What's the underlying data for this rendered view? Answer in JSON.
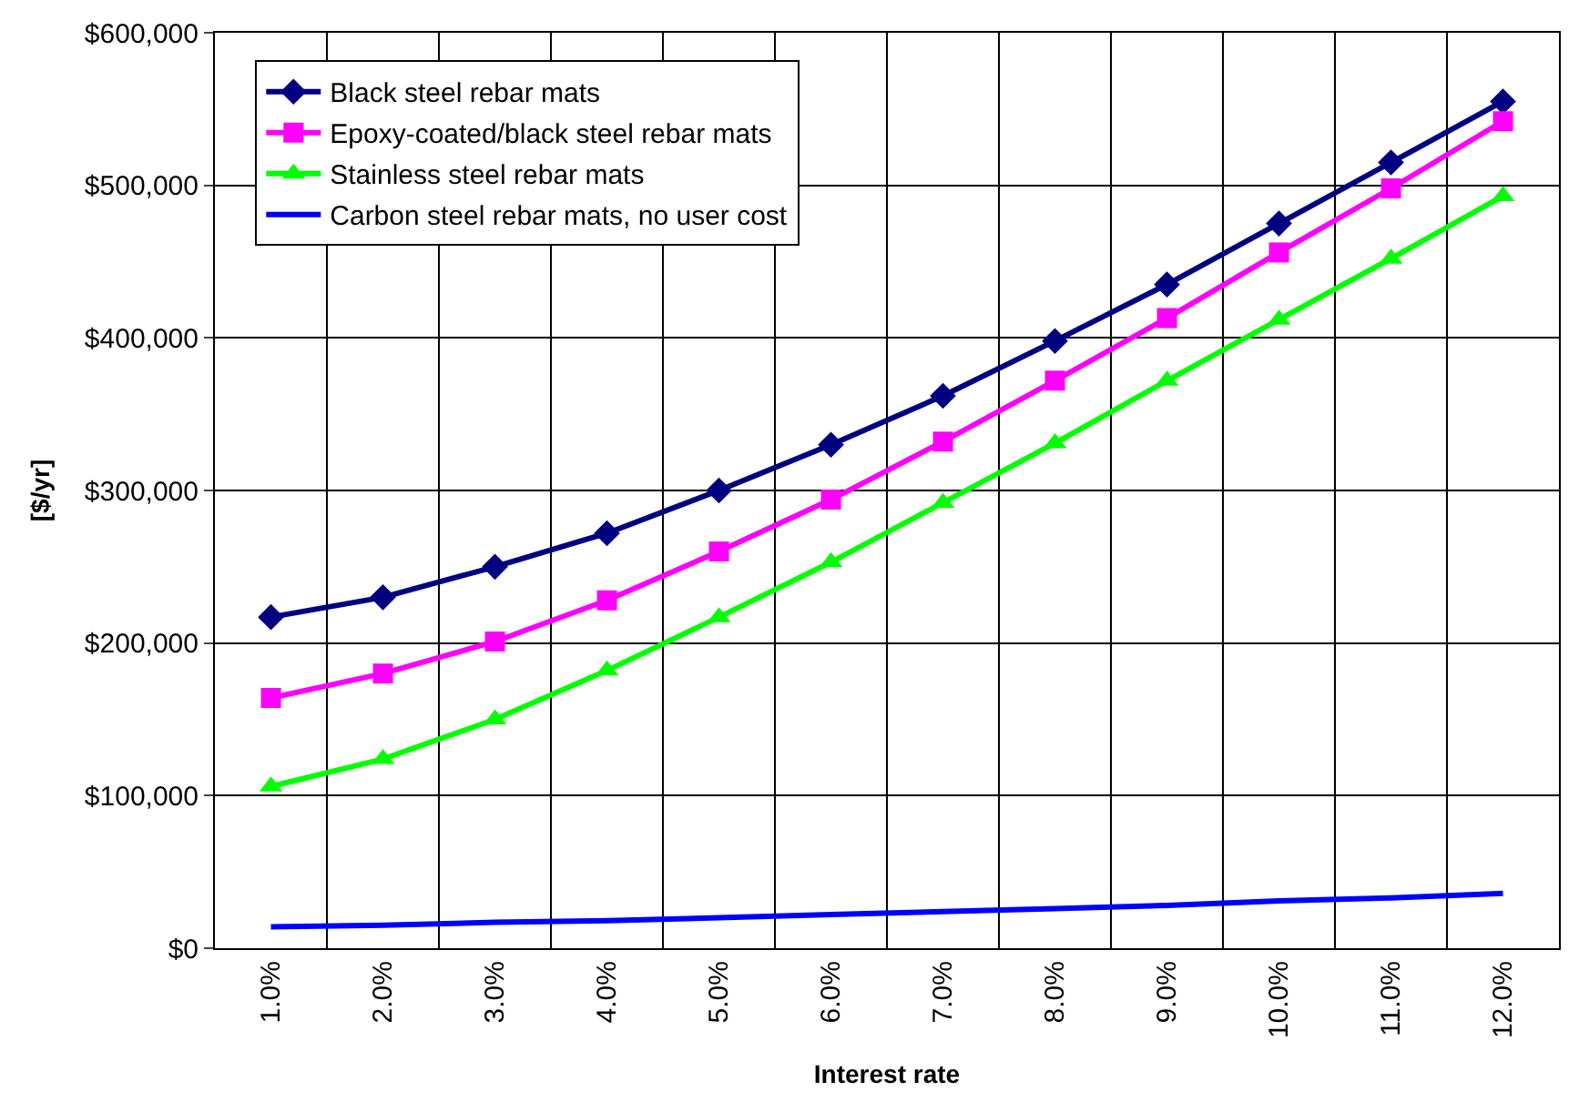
{
  "chart_data": {
    "type": "line",
    "xlabel": "Interest rate",
    "ylabel": "[$/yr]",
    "categories": [
      "1.0%",
      "2.0%",
      "3.0%",
      "4.0%",
      "5.0%",
      "6.0%",
      "7.0%",
      "8.0%",
      "9.0%",
      "10.0%",
      "11.0%",
      "12.0%"
    ],
    "series": [
      {
        "name": "Black steel rebar mats",
        "color": "#000080",
        "marker": "diamond",
        "values": [
          217000,
          230000,
          250000,
          272000,
          300000,
          330000,
          362000,
          398000,
          435000,
          475000,
          515000,
          555000
        ]
      },
      {
        "name": "Epoxy-coated/black steel rebar mats",
        "color": "#ff00ff",
        "marker": "square",
        "values": [
          164000,
          180000,
          201000,
          228000,
          260000,
          294000,
          332000,
          372000,
          413000,
          456000,
          498000,
          542000
        ]
      },
      {
        "name": "Stainless steel rebar mats",
        "color": "#00ff00",
        "marker": "triangle",
        "values": [
          106000,
          124000,
          150000,
          182000,
          217000,
          253000,
          292000,
          331000,
          372000,
          412000,
          452000,
          493000
        ]
      },
      {
        "name": "Carbon steel rebar mats, no user cost",
        "color": "#0000ff",
        "marker": "none",
        "values": [
          14000,
          15000,
          17000,
          18000,
          20000,
          22000,
          24000,
          26000,
          28000,
          31000,
          33000,
          36000
        ]
      }
    ],
    "ylim": [
      0,
      600000
    ],
    "yticks": [
      {
        "value": 0,
        "label": "$0"
      },
      {
        "value": 100000,
        "label": "$100,000"
      },
      {
        "value": 200000,
        "label": "$200,000"
      },
      {
        "value": 300000,
        "label": "$300,000"
      },
      {
        "value": 400000,
        "label": "$400,000"
      },
      {
        "value": 500000,
        "label": "$500,000"
      },
      {
        "value": 600000,
        "label": "$600,000"
      }
    ],
    "grid": true,
    "legend": "top left",
    "line_style": "solid"
  }
}
